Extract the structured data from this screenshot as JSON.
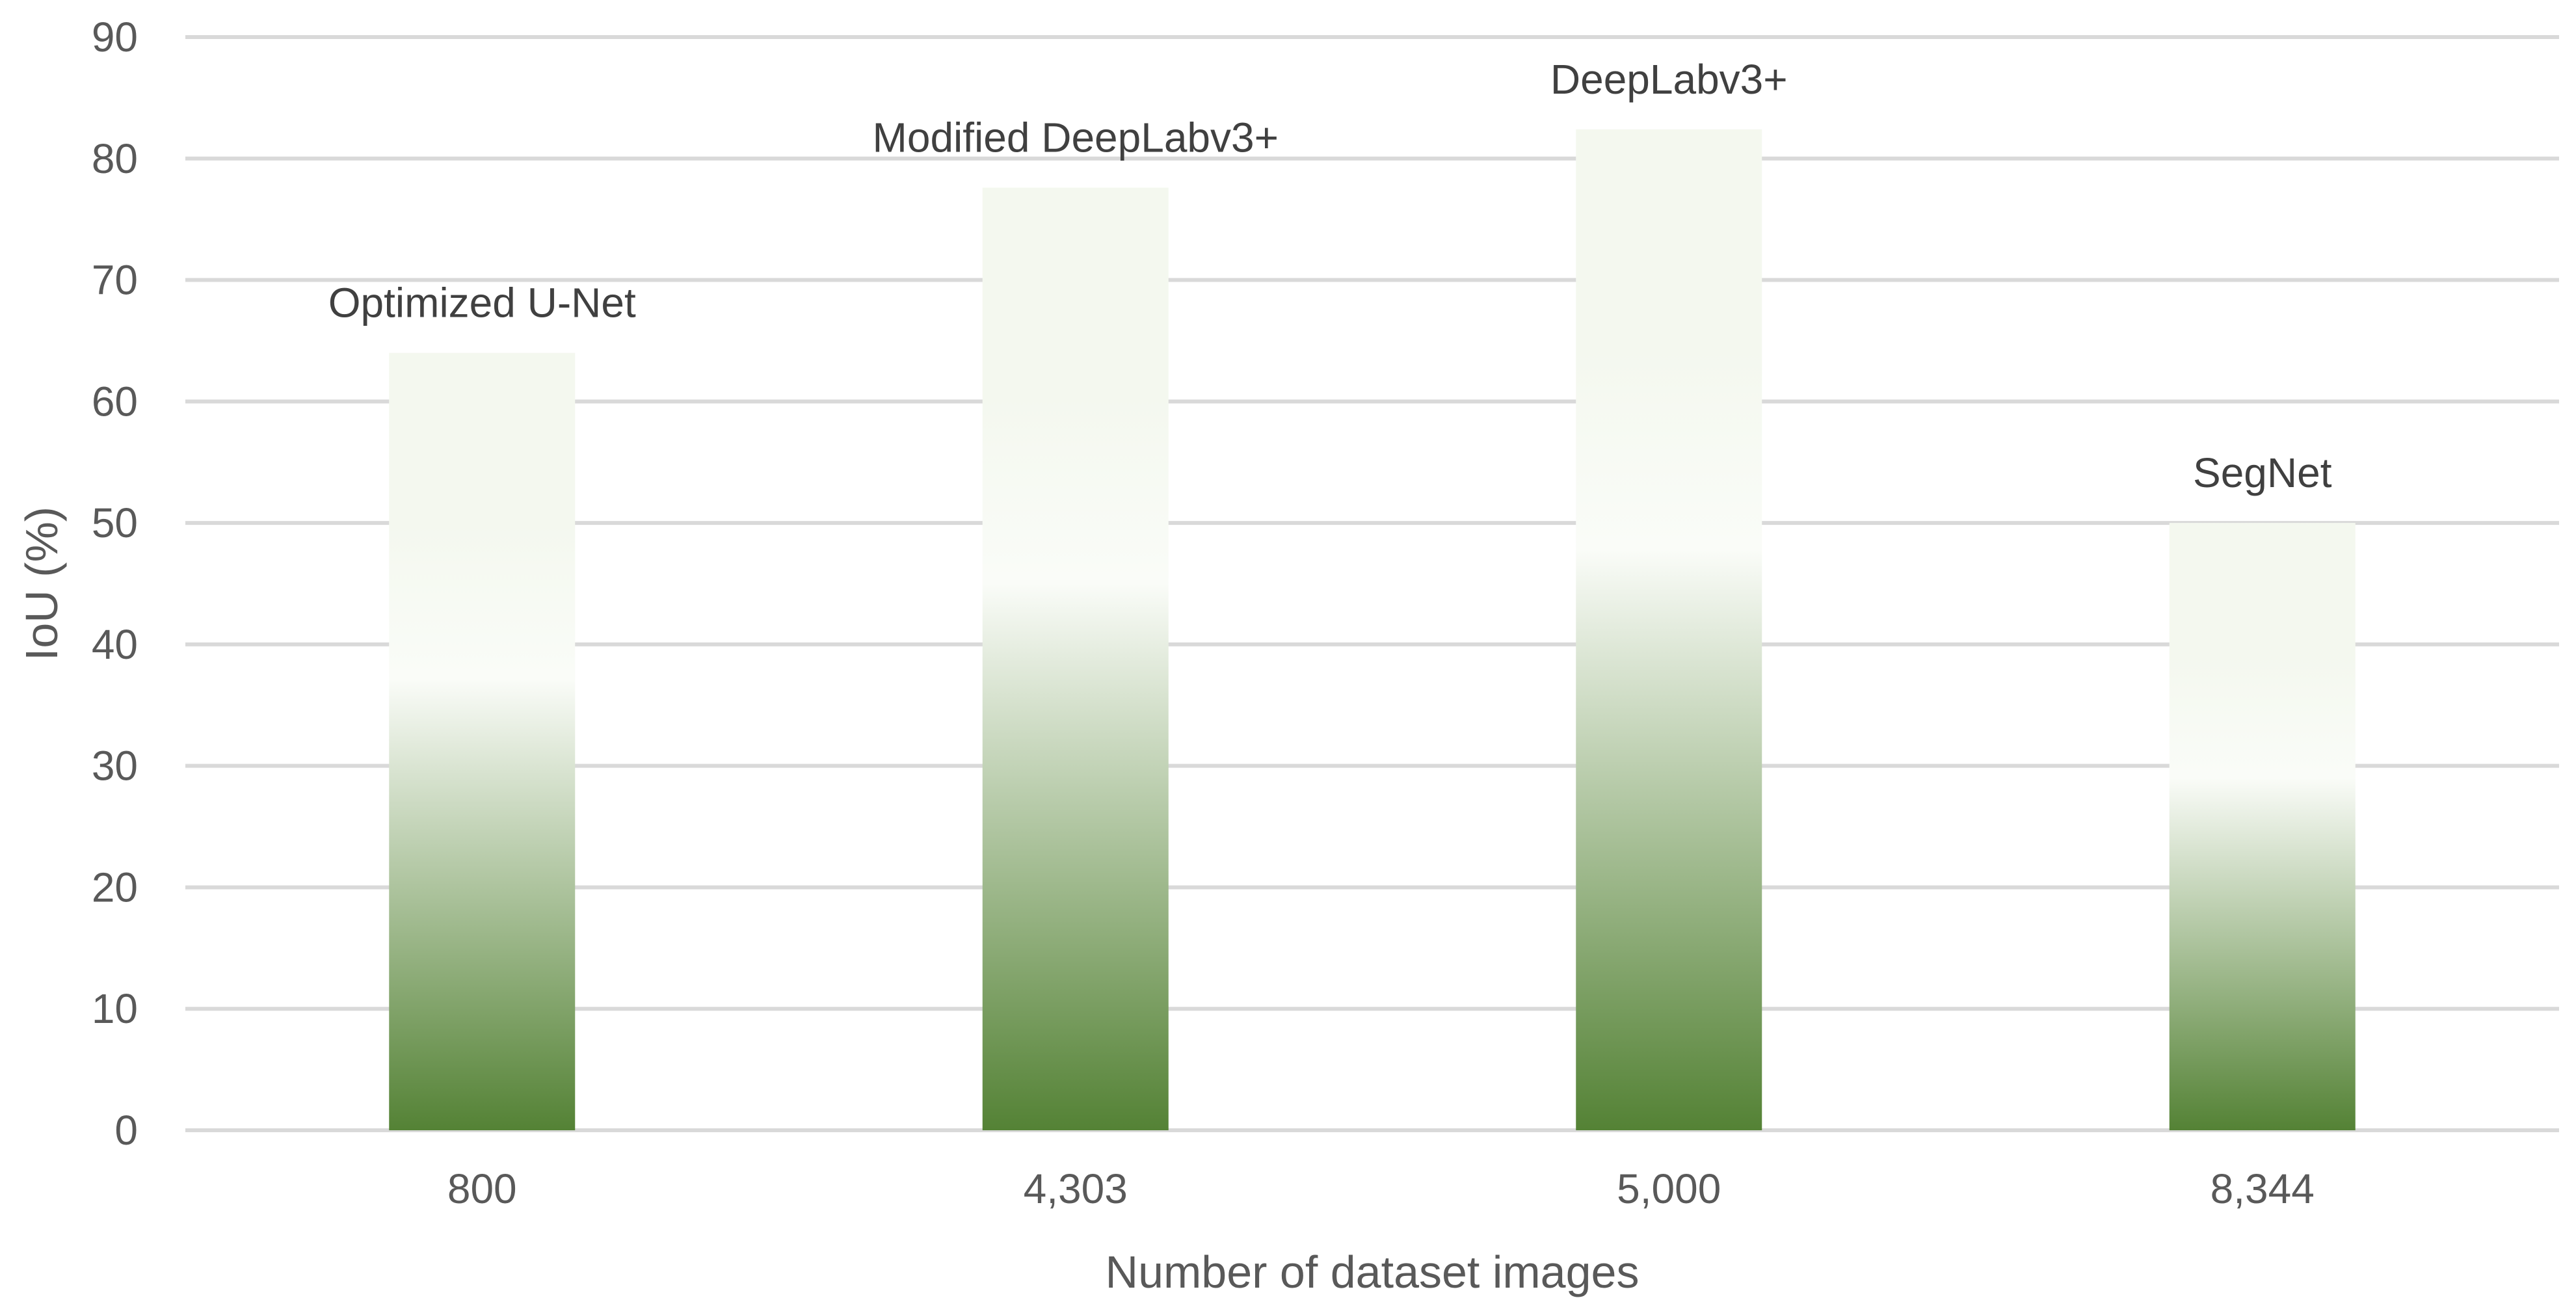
{
  "chart_data": {
    "type": "bar",
    "title": "",
    "xlabel": "Number of dataset images",
    "ylabel": "IoU (%)",
    "ylim": [
      0,
      90
    ],
    "yticks": [
      "0",
      "10",
      "20",
      "30",
      "40",
      "50",
      "60",
      "70",
      "80",
      "90"
    ],
    "grid": true,
    "legend": "none",
    "categories": [
      "800",
      "4,303",
      "5,000",
      "8,344"
    ],
    "series": [
      {
        "values": [
          64,
          77.6,
          82.4,
          50
        ],
        "data_labels": [
          "Optimized U-Net",
          "Modified DeepLabv3+",
          "DeepLabv3+",
          "SegNet"
        ]
      }
    ],
    "colors": {
      "bar_top": "#f4f8ef",
      "bar_mid": "#fafcf8",
      "bar_bottom": "#548235",
      "gridline": "#d9d9d9",
      "tick_text": "#595959",
      "label_text": "#404040"
    }
  }
}
